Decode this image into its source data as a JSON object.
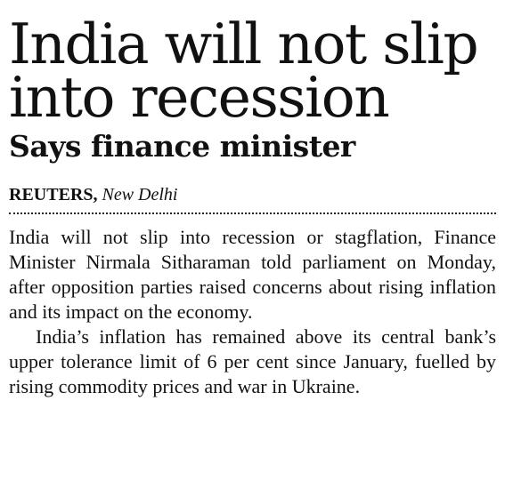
{
  "headline": "India will not slip into recession",
  "subheadline": "Says finance minister",
  "byline": {
    "agency": "REUTERS,",
    "location": "New Delhi"
  },
  "paragraphs": [
    "India will not slip into recession or stagflation, Finance Minister Nirmala Sitharaman told parliament on Monday, after opposition parties raised concerns about rising inflation and its impact on the economy.",
    "India’s inflation has remained above its central bank’s upper tolerance limit of 6 per cent since January, fuelled by rising commodity prices and war in Ukraine."
  ]
}
